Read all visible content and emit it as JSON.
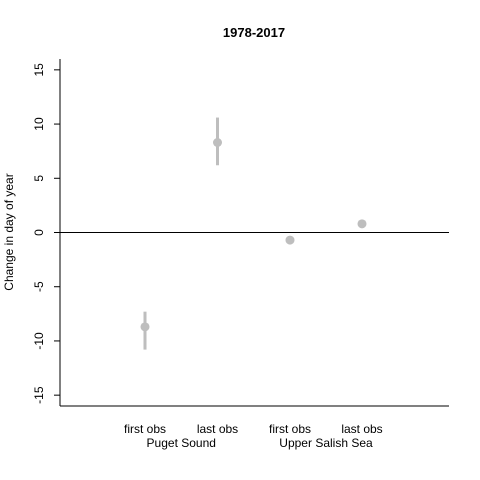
{
  "chart_data": {
    "type": "scatter",
    "title": "1978-2017",
    "ylabel": "Change in day of year",
    "xlabel": "",
    "ylim": [
      -16,
      16
    ],
    "yticks": [
      -15,
      -10,
      -5,
      0,
      5,
      10,
      15
    ],
    "reference_line": 0,
    "grid": false,
    "categories": [
      "first obs",
      "last obs",
      "first obs",
      "last obs"
    ],
    "groups": [
      {
        "label": "Puget Sound",
        "members": [
          0,
          1
        ]
      },
      {
        "label": "Upper Salish Sea",
        "members": [
          2,
          3
        ]
      }
    ],
    "points": [
      {
        "category": "first obs",
        "group": "Puget Sound",
        "y": -8.7,
        "low": -10.8,
        "high": -7.3
      },
      {
        "category": "last obs",
        "group": "Puget Sound",
        "y": 8.3,
        "low": 6.2,
        "high": 10.6
      },
      {
        "category": "first obs",
        "group": "Upper Salish Sea",
        "y": -0.7,
        "low": -0.8,
        "high": -0.5
      },
      {
        "category": "last obs",
        "group": "Upper Salish Sea",
        "y": 0.8,
        "low": 0.6,
        "high": 1.0
      }
    ],
    "marker_color": "#bebebe"
  }
}
